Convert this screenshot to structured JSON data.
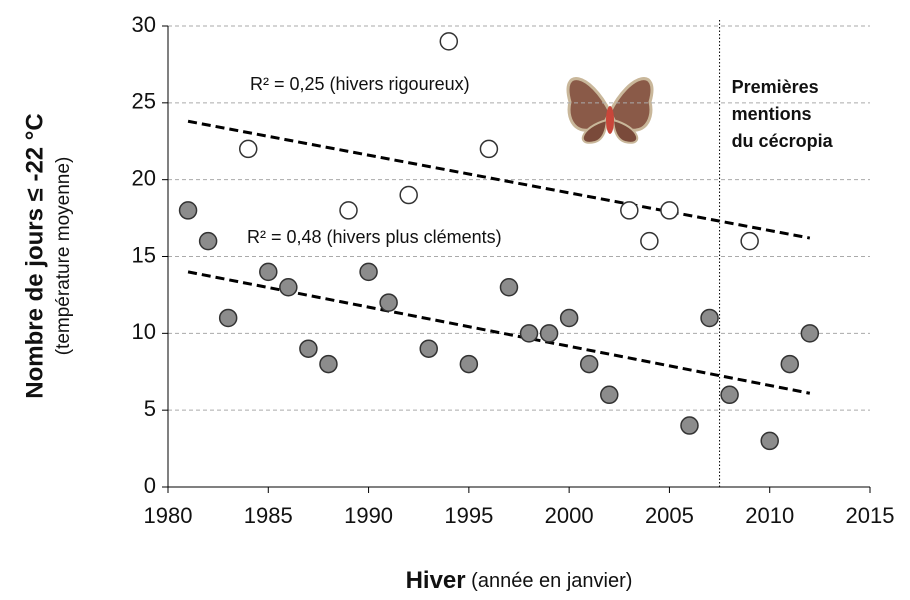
{
  "chart_data": {
    "type": "scatter",
    "xlabel": {
      "bold": "Hiver",
      "normal": " (année en janvier)"
    },
    "ylabel": {
      "main": "Nombre de jours ≤ -22 °C",
      "sub": "(température moyenne)"
    },
    "xlim": [
      1980,
      2015
    ],
    "xticks": [
      1980,
      1985,
      1990,
      1995,
      2000,
      2005,
      2010,
      2015
    ],
    "ylim": [
      0,
      30
    ],
    "yticks": [
      0,
      5,
      10,
      15,
      20,
      25,
      30
    ],
    "grid": true,
    "series": [
      {
        "color": "#8c8c8c",
        "x": [
          1981,
          1982,
          1983,
          1985,
          1986,
          1987,
          1988,
          1990,
          1991,
          1993,
          1995,
          1997,
          1998,
          1999,
          2000,
          2001,
          2002,
          2006,
          2007,
          2008,
          2010,
          2011,
          2012
        ],
        "values": [
          18,
          16,
          11,
          14,
          13,
          9,
          8,
          14,
          12,
          9,
          8,
          13,
          10,
          10,
          11,
          8,
          6,
          4,
          11,
          6,
          3,
          8,
          10
        ]
      },
      {
        "color": "#ffffff",
        "x": [
          1984,
          1989,
          1992,
          1994,
          1996,
          2003,
          2004,
          2005,
          2009
        ],
        "values": [
          22,
          18,
          19,
          29,
          22,
          18,
          16,
          18,
          16
        ]
      }
    ],
    "trendlines": [
      {
        "label": "R² = 0,25 (hivers rigoureux)",
        "x": [
          1981,
          2012
        ],
        "values": [
          23.8,
          16.2
        ]
      },
      {
        "label": "R² = 0,48 (hivers plus cléments)",
        "x": [
          1981,
          2012
        ],
        "values": [
          14.0,
          6.1
        ]
      }
    ],
    "vline": {
      "x": 2007.5,
      "label": [
        "Premières",
        "mentions",
        "du cécropia"
      ]
    }
  }
}
